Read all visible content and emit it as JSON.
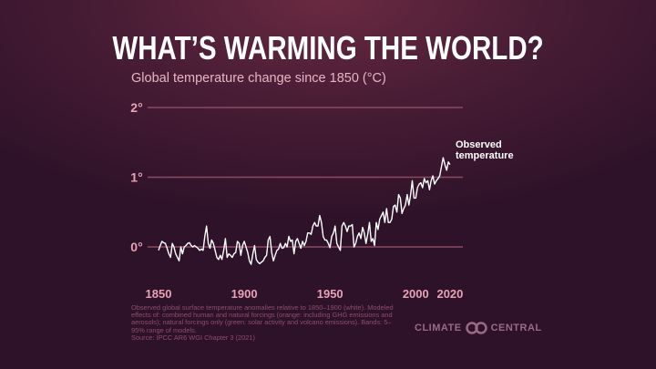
{
  "title": "WHAT’S WARMING THE WORLD?",
  "subtitle": "Global temperature change since 1850 (°C)",
  "footnote": "Observed global surface temperature anomalies relative to 1850–1900 (white). Modeled effects of: combined human and natural forcings (orange: including GHG emissions and aerosols); natural forcings only (green: solar activity and volcano emissions). Bands: 5–95% range of models.",
  "source": "Source: IPCC AR6 WGI Chapter 3 (2021)",
  "logo": {
    "left": "CLIMATE",
    "right": "CENTRAL"
  },
  "colors": {
    "line": "#ffffff",
    "grid": "#8a4a64",
    "tick": "#e8a2b4"
  },
  "chart_data": {
    "type": "line",
    "title": "Global temperature change since 1850 (°C)",
    "xlim": [
      1850,
      2020
    ],
    "ylim": [
      -0.4,
      2
    ],
    "x_ticks": [
      1850,
      1900,
      1950,
      2000,
      2020
    ],
    "y_ticks": [
      {
        "value": 0,
        "label": "0°"
      },
      {
        "value": 1,
        "label": "1°"
      },
      {
        "value": 2,
        "label": "2°"
      }
    ],
    "grid": "horizontal",
    "annotation": [
      "Observed",
      "temperature"
    ],
    "series": [
      {
        "name": "Observed temperature",
        "x_start": 1850,
        "values": [
          -0.05,
          0.02,
          0.08,
          0.06,
          0.05,
          -0.02,
          -0.1,
          -0.15,
          0.05,
          0.0,
          -0.1,
          -0.15,
          -0.2,
          0.0,
          -0.1,
          0.0,
          0.02,
          0.05,
          0.06,
          0.02,
          0.0,
          0.02,
          0.0,
          -0.02,
          -0.05,
          -0.03,
          -0.05,
          0.15,
          0.3,
          0.05,
          -0.02,
          0.1,
          0.05,
          -0.05,
          -0.15,
          -0.18,
          -0.12,
          -0.18,
          -0.05,
          0.12,
          -0.15,
          -0.1,
          -0.12,
          -0.15,
          -0.1,
          -0.08,
          0.08,
          0.05,
          -0.12,
          0.02,
          0.08,
          0.0,
          -0.08,
          -0.2,
          -0.25,
          -0.1,
          0.02,
          -0.18,
          -0.22,
          -0.24,
          -0.22,
          -0.2,
          -0.15,
          -0.12,
          0.1,
          0.15,
          -0.08,
          -0.2,
          -0.12,
          -0.05,
          -0.03,
          0.05,
          -0.02,
          -0.01,
          0.05,
          0.0,
          0.15,
          0.08,
          0.1,
          -0.1,
          0.08,
          0.12,
          0.05,
          -0.02,
          0.08,
          0.02,
          0.08,
          0.2,
          0.2,
          0.18,
          0.3,
          0.35,
          0.3,
          0.3,
          0.45,
          0.35,
          0.15,
          0.1,
          0.1,
          0.05,
          -0.01,
          0.15,
          0.2,
          0.3,
          0.05,
          0.0,
          -0.05,
          0.3,
          0.35,
          0.3,
          0.22,
          0.3,
          0.3,
          0.32,
          0.0,
          0.05,
          0.15,
          0.2,
          0.12,
          0.28,
          0.2,
          0.05,
          0.18,
          0.35,
          0.08,
          0.12,
          0.02,
          0.35,
          0.25,
          0.4,
          0.45,
          0.5,
          0.35,
          0.55,
          0.35,
          0.35,
          0.4,
          0.58,
          0.6,
          0.5,
          0.75,
          0.7,
          0.48,
          0.55,
          0.6,
          0.75,
          0.6,
          0.75,
          0.95,
          0.7,
          0.7,
          0.85,
          0.9,
          0.92,
          0.85,
          0.98,
          0.92,
          0.95,
          0.82,
          0.95,
          1.02,
          0.9,
          0.95,
          0.98,
          1.02,
          1.15,
          1.28,
          1.18,
          1.1,
          1.22,
          1.18
        ]
      }
    ]
  }
}
